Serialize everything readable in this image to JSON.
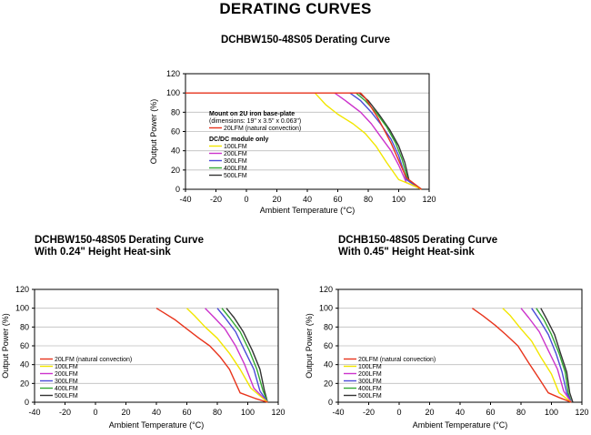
{
  "page": {
    "title": "DERATING CURVES"
  },
  "colors": {
    "black": "#000000",
    "20LFM": "#e8341c",
    "100LFM": "#f2e600",
    "200LFM": "#cc33cc",
    "300LFM": "#4a4ad8",
    "400LFM": "#33a833",
    "500LFM": "#333333"
  },
  "chart_data": [
    {
      "type": "line",
      "title_lines": [
        "DCHBW150-48S05 Derating Curve"
      ],
      "xlabel": "Ambient Temperature (°C)",
      "ylabel": "Output Power (%)",
      "xlim": [
        -40,
        120
      ],
      "ylim": [
        0,
        120
      ],
      "xticks": [
        -40,
        -20,
        0,
        20,
        40,
        60,
        80,
        100,
        120
      ],
      "yticks": [
        0,
        20,
        40,
        60,
        80,
        100,
        120
      ],
      "grid": true,
      "legend_groups": [
        {
          "header_lines": [
            "Mount on 2U iron base-plate",
            "(dimensions: 19\" x 3.5\" x 0.063\")"
          ],
          "entries": [
            "20LFM (natural convection)"
          ]
        },
        {
          "header_lines": [
            "DC/DC module only"
          ],
          "entries": [
            "100LFM",
            "200LFM",
            "300LFM",
            "400LFM",
            "500LFM"
          ]
        }
      ],
      "series": [
        {
          "name": "20LFM (natural convection)",
          "color_key": "20LFM",
          "x": [
            -40,
            75,
            78,
            82,
            86,
            90,
            95,
            100,
            105,
            110,
            115
          ],
          "y": [
            100,
            100,
            95,
            85,
            75,
            63,
            48,
            30,
            12,
            6,
            0
          ]
        },
        {
          "name": "100LFM",
          "color_key": "100LFM",
          "x": [
            45,
            52,
            60,
            70,
            78,
            85,
            92,
            100,
            108,
            115
          ],
          "y": [
            100,
            88,
            78,
            68,
            58,
            45,
            28,
            10,
            5,
            0
          ]
        },
        {
          "name": "200LFM",
          "color_key": "200LFM",
          "x": [
            58,
            65,
            75,
            82,
            88,
            95,
            100,
            105,
            115
          ],
          "y": [
            100,
            92,
            80,
            68,
            55,
            40,
            25,
            7,
            0
          ]
        },
        {
          "name": "300LFM",
          "color_key": "300LFM",
          "x": [
            68,
            75,
            82,
            88,
            95,
            100,
            105,
            115
          ],
          "y": [
            100,
            92,
            80,
            68,
            52,
            35,
            10,
            0
          ]
        },
        {
          "name": "400LFM",
          "color_key": "400LFM",
          "x": [
            72,
            78,
            85,
            92,
            98,
            102,
            106,
            115
          ],
          "y": [
            100,
            92,
            80,
            65,
            48,
            32,
            10,
            0
          ]
        },
        {
          "name": "500LFM",
          "color_key": "500LFM",
          "x": [
            74,
            80,
            87,
            94,
            100,
            104,
            107,
            115
          ],
          "y": [
            100,
            92,
            78,
            62,
            45,
            28,
            8,
            0
          ]
        }
      ]
    },
    {
      "type": "line",
      "title_lines": [
        "DCHBW150-48S05 Derating Curve",
        "With 0.24\" Height Heat-sink"
      ],
      "xlabel": "Ambient Temperature (°C)",
      "ylabel": "Output Power (%)",
      "xlim": [
        -40,
        120
      ],
      "ylim": [
        0,
        120
      ],
      "xticks": [
        -40,
        -20,
        0,
        20,
        40,
        60,
        80,
        100,
        120
      ],
      "yticks": [
        0,
        20,
        40,
        60,
        80,
        100,
        120
      ],
      "grid": true,
      "legend_groups": [
        {
          "header_lines": [],
          "entries": [
            "20LFM (natural convection)",
            "100LFM",
            "200LFM",
            "300LFM",
            "400LFM",
            "500LFM"
          ]
        }
      ],
      "series": [
        {
          "name": "20LFM (natural convection)",
          "color_key": "20LFM",
          "x": [
            40,
            45,
            52,
            60,
            68,
            75,
            82,
            88,
            95,
            105,
            113
          ],
          "y": [
            100,
            95,
            88,
            78,
            68,
            60,
            48,
            35,
            10,
            4,
            0
          ]
        },
        {
          "name": "100LFM",
          "color_key": "100LFM",
          "x": [
            60,
            65,
            72,
            80,
            88,
            95,
            102,
            113
          ],
          "y": [
            100,
            92,
            80,
            68,
            52,
            35,
            15,
            0
          ]
        },
        {
          "name": "200LFM",
          "color_key": "200LFM",
          "x": [
            72,
            78,
            85,
            92,
            98,
            104,
            113
          ],
          "y": [
            100,
            90,
            78,
            60,
            40,
            15,
            0
          ]
        },
        {
          "name": "300LFM",
          "color_key": "300LFM",
          "x": [
            80,
            85,
            92,
            98,
            104,
            108,
            113
          ],
          "y": [
            100,
            90,
            75,
            55,
            35,
            12,
            0
          ]
        },
        {
          "name": "400LFM",
          "color_key": "400LFM",
          "x": [
            83,
            88,
            95,
            101,
            106,
            110,
            113
          ],
          "y": [
            100,
            90,
            75,
            55,
            35,
            12,
            0
          ]
        },
        {
          "name": "500LFM",
          "color_key": "500LFM",
          "x": [
            86,
            91,
            97,
            103,
            108,
            111,
            113
          ],
          "y": [
            100,
            90,
            75,
            55,
            35,
            12,
            0
          ]
        }
      ]
    },
    {
      "type": "line",
      "title_lines": [
        "DCHB150-48S05 Derating Curve",
        "With 0.45\" Height Heat-sink"
      ],
      "xlabel": "Ambient Temperature (°C)",
      "ylabel": "Output Power (%)",
      "xlim": [
        -40,
        120
      ],
      "ylim": [
        0,
        120
      ],
      "xticks": [
        -40,
        -20,
        0,
        20,
        40,
        60,
        80,
        100,
        120
      ],
      "yticks": [
        0,
        20,
        40,
        60,
        80,
        100,
        120
      ],
      "grid": true,
      "legend_groups": [
        {
          "header_lines": [],
          "entries": [
            "20LFM (natural convection)",
            "100LFM",
            "200LFM",
            "300LFM",
            "400LFM",
            "500LFM"
          ]
        }
      ],
      "series": [
        {
          "name": "20LFM (natural convection)",
          "color_key": "20LFM",
          "x": [
            48,
            55,
            63,
            70,
            78,
            85,
            92,
            98,
            105,
            113
          ],
          "y": [
            100,
            92,
            82,
            72,
            60,
            42,
            25,
            10,
            5,
            0
          ]
        },
        {
          "name": "100LFM",
          "color_key": "100LFM",
          "x": [
            68,
            73,
            80,
            87,
            93,
            100,
            105,
            113
          ],
          "y": [
            100,
            92,
            78,
            65,
            48,
            30,
            10,
            0
          ]
        },
        {
          "name": "200LFM",
          "color_key": "200LFM",
          "x": [
            80,
            85,
            92,
            98,
            104,
            108,
            113
          ],
          "y": [
            100,
            90,
            75,
            55,
            35,
            12,
            0
          ]
        },
        {
          "name": "300LFM",
          "color_key": "300LFM",
          "x": [
            87,
            92,
            98,
            103,
            107,
            110,
            113
          ],
          "y": [
            100,
            88,
            72,
            52,
            32,
            10,
            0
          ]
        },
        {
          "name": "400LFM",
          "color_key": "400LFM",
          "x": [
            90,
            95,
            100,
            105,
            109,
            111,
            113
          ],
          "y": [
            100,
            88,
            72,
            52,
            32,
            10,
            0
          ]
        },
        {
          "name": "500LFM",
          "color_key": "500LFM",
          "x": [
            93,
            97,
            102,
            106,
            110,
            112,
            114
          ],
          "y": [
            100,
            88,
            72,
            52,
            32,
            10,
            0
          ]
        }
      ]
    }
  ]
}
